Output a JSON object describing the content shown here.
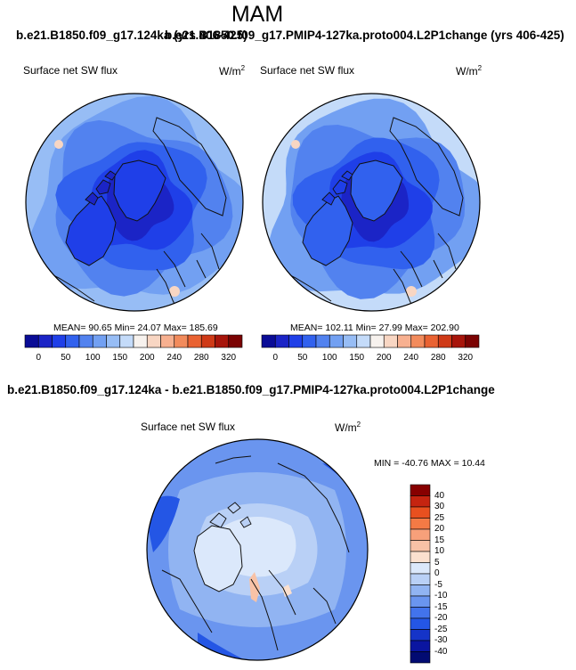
{
  "figure": {
    "season": "MAM",
    "title_case1": "b.e21.B1850.f09_g17.124ka (yrs 406-425)",
    "title_case2": "b.e21.B1850.f09_g17.PMIP4-127ka.proto004.L2P1change (yrs 406-425)",
    "diff_title": "b.e21.B1850.f09_g17.124ka - b.e21.B1850.f09_g17.PMIP4-127ka.proto004.L2P1change"
  },
  "colors": {
    "ocean_dark": "#1a3fd6",
    "coast": "#111111"
  },
  "chart_data": [
    {
      "type": "heatmap",
      "name": "case1-polar-map",
      "variable": "Surface net SW flux",
      "units": "W/m",
      "units_sup": "2",
      "stats_text": "MEAN=  90.65   Min=  24.07   Max= 185.69",
      "mean": 90.65,
      "min": 24.07,
      "max": 185.69,
      "colorbar": {
        "orientation": "horizontal",
        "tick_labels": [
          "0",
          "50",
          "100",
          "150",
          "200",
          "240",
          "280",
          "320"
        ],
        "colors": [
          "#0a0c96",
          "#1b24c6",
          "#1f3fe8",
          "#3161ee",
          "#5282ef",
          "#72a0f2",
          "#97bdf5",
          "#c4dbf9",
          "#f7f2ee",
          "#f8d6c3",
          "#f7b090",
          "#f28b5c",
          "#e96232",
          "#cf3a17",
          "#a7150b",
          "#7b0303"
        ]
      },
      "field_levels": [
        0.05,
        0.15,
        0.35,
        0.55,
        0.75
      ]
    },
    {
      "type": "heatmap",
      "name": "case2-polar-map",
      "variable": "Surface net SW flux",
      "units": "W/m",
      "units_sup": "2",
      "stats_text": "MEAN= 102.11   Min=  27.99   Max= 202.90",
      "mean": 102.11,
      "min": 27.99,
      "max": 202.9,
      "colorbar": {
        "orientation": "horizontal",
        "tick_labels": [
          "0",
          "50",
          "100",
          "150",
          "200",
          "240",
          "280",
          "320"
        ],
        "colors": [
          "#0a0c96",
          "#1b24c6",
          "#1f3fe8",
          "#3161ee",
          "#5282ef",
          "#72a0f2",
          "#97bdf5",
          "#c4dbf9",
          "#f7f2ee",
          "#f8d6c3",
          "#f7b090",
          "#f28b5c",
          "#e96232",
          "#cf3a17",
          "#a7150b",
          "#7b0303"
        ]
      },
      "field_levels": [
        0.1,
        0.25,
        0.45,
        0.65,
        0.85
      ]
    },
    {
      "type": "heatmap",
      "name": "difference-polar-map",
      "variable": "Surface net SW flux",
      "units": "W/m",
      "units_sup": "2",
      "stats_text": "MIN = -40.76 MAX =  10.44",
      "min": -40.76,
      "max": 10.44,
      "colorbar": {
        "orientation": "vertical",
        "tick_labels": [
          "40",
          "30",
          "25",
          "20",
          "15",
          "10",
          "5",
          "0",
          "-5",
          "-10",
          "-15",
          "-20",
          "-25",
          "-30",
          "-40"
        ],
        "colors": [
          "#870000",
          "#c52410",
          "#e8501f",
          "#f47a45",
          "#f7a07a",
          "#f8c2a6",
          "#fbe0cf",
          "#dbe8fb",
          "#b9d0f6",
          "#91b4f2",
          "#6a95ef",
          "#4273ec",
          "#2456e5",
          "#1534c8",
          "#0a15a0",
          "#020b72"
        ]
      }
    }
  ]
}
